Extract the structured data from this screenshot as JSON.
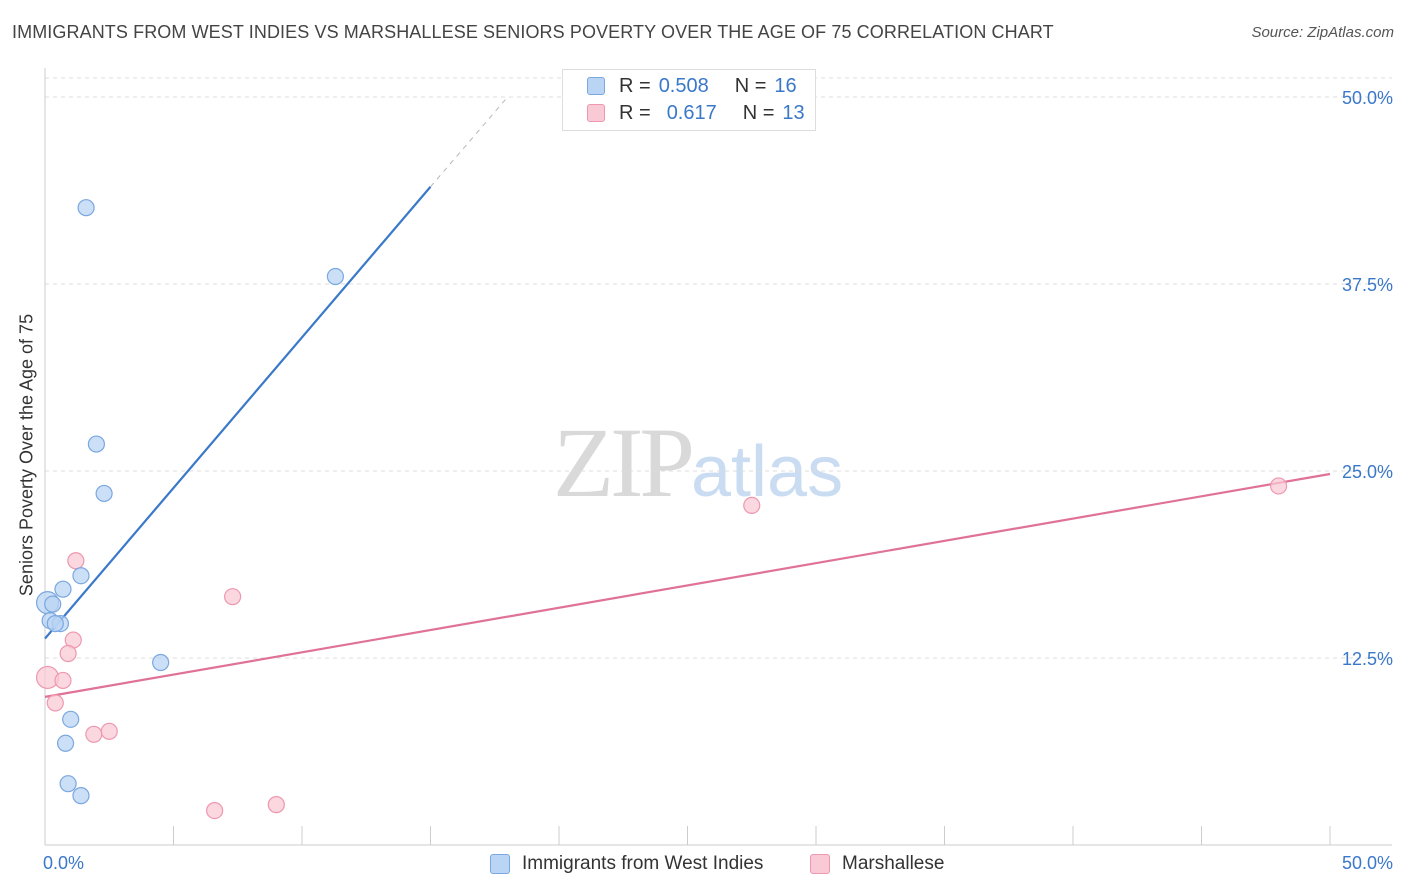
{
  "chart_data": {
    "type": "scatter",
    "title": "IMMIGRANTS FROM WEST INDIES VS MARSHALLESE SENIORS POVERTY OVER THE AGE OF 75 CORRELATION CHART",
    "source": "Source: ZipAtlas.com",
    "xlabel": "",
    "ylabel": "Seniors Poverty Over the Age of 75",
    "xlim": [
      0,
      50
    ],
    "ylim": [
      0,
      50
    ],
    "x_tick_labels": [
      "0.0%",
      "50.0%"
    ],
    "y_tick_labels": [
      "12.5%",
      "25.0%",
      "37.5%",
      "50.0%"
    ],
    "y_ticks": [
      12.5,
      25.0,
      37.5,
      50.0
    ],
    "grid": true,
    "legend_position": "top-center",
    "watermark": {
      "zip": "ZIP",
      "atlas": "atlas"
    },
    "series": [
      {
        "name": "Immigrants from West Indies",
        "color": "#3a78c9",
        "fill": "#bad4f3",
        "stroke": "#7aa7e0",
        "R": "0.508",
        "N": "16",
        "points": [
          [
            0.1,
            16.2
          ],
          [
            0.3,
            16.1
          ],
          [
            0.2,
            15.0
          ],
          [
            0.7,
            17.1
          ],
          [
            0.6,
            14.8
          ],
          [
            1.6,
            42.6
          ],
          [
            2.0,
            26.8
          ],
          [
            2.3,
            23.5
          ],
          [
            1.4,
            18.0
          ],
          [
            11.3,
            38.0
          ],
          [
            4.5,
            12.2
          ],
          [
            1.0,
            8.4
          ],
          [
            0.8,
            6.8
          ],
          [
            0.9,
            4.1
          ],
          [
            1.4,
            3.3
          ],
          [
            0.4,
            14.8
          ]
        ],
        "point_sizes": [
          11,
          8,
          8,
          8,
          8,
          8,
          8,
          8,
          8,
          8,
          8,
          8,
          8,
          8,
          8,
          8
        ],
        "trend": {
          "x0": 0.0,
          "y0": 13.8,
          "x1": 15.0,
          "y1": 44.0,
          "dash_to_x": 18.0,
          "dash_to_y": 50.0
        }
      },
      {
        "name": "Marshallese",
        "color": "#e07298",
        "fill": "#f9c9d6",
        "stroke": "#ee97ae",
        "R": "0.617",
        "N": "13",
        "points": [
          [
            0.1,
            11.2
          ],
          [
            1.2,
            19.0
          ],
          [
            1.1,
            13.7
          ],
          [
            0.9,
            12.8
          ],
          [
            0.7,
            11.0
          ],
          [
            0.4,
            9.5
          ],
          [
            1.9,
            7.4
          ],
          [
            2.5,
            7.6
          ],
          [
            7.3,
            16.6
          ],
          [
            6.6,
            2.3
          ],
          [
            9.0,
            2.7
          ],
          [
            27.5,
            22.7
          ],
          [
            48.0,
            24.0
          ]
        ],
        "point_sizes": [
          11,
          8,
          8,
          8,
          8,
          8,
          8,
          8,
          8,
          8,
          8,
          8,
          8
        ],
        "trend": {
          "x0": 0.0,
          "y0": 9.9,
          "x1": 50.0,
          "y1": 24.8
        }
      }
    ]
  },
  "legend": {
    "r_label": "R =",
    "n_label": "N =",
    "blue_r": "0.508",
    "blue_n": "16",
    "pink_r": "0.617",
    "pink_n": "13"
  },
  "bottom_legend": {
    "blue_label": "Immigrants from West Indies",
    "pink_label": "Marshallese"
  }
}
